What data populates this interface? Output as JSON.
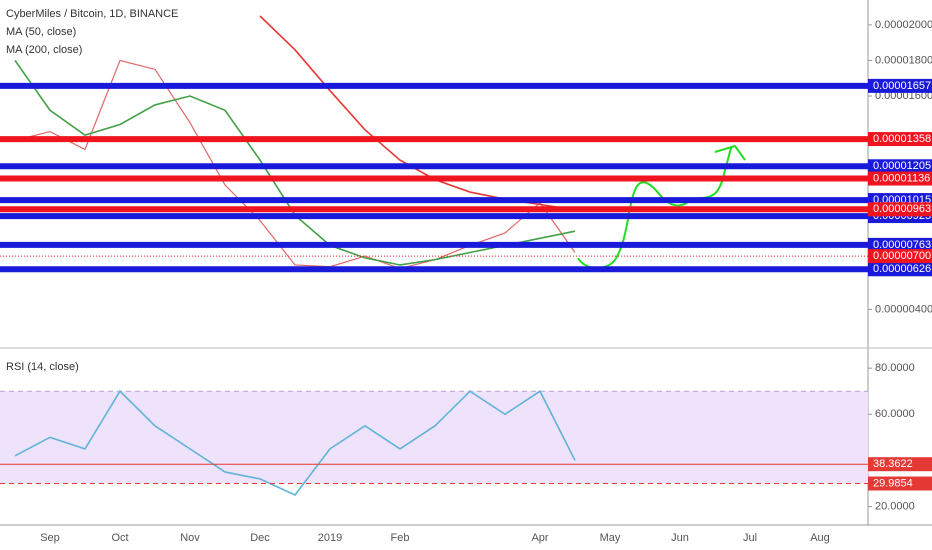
{
  "chart_data": [
    {
      "type": "line",
      "title": "CyberMiles / Bitcoin, 1D, BINANCE",
      "categories": [
        null,
        "Sep",
        null,
        "Oct",
        null,
        "Nov",
        null,
        "Dec",
        null,
        "2019",
        null,
        "Feb",
        null,
        null,
        null,
        "Apr",
        null,
        "May",
        null,
        "Jun",
        null,
        "Jul",
        null,
        "Aug",
        null
      ],
      "series": [
        {
          "color": "#e06666",
          "values": [
            1.35e-05,
            1.4e-05,
            1.3e-05,
            1.8e-05,
            1.75e-05,
            1.45e-05,
            1.1e-05,
            9e-06,
            6.5e-06,
            6.4e-06,
            7e-06,
            6.3e-06,
            6.8e-06,
            7.6e-06,
            8.3e-06,
            1e-05,
            7.2e-06,
            null,
            null,
            null,
            null,
            null,
            null,
            null,
            null
          ]
        },
        {
          "name": "MA (50, close)",
          "color": "#43a047",
          "values": [
            1.8e-05,
            1.52e-05,
            1.38e-05,
            1.44e-05,
            1.55e-05,
            1.6e-05,
            1.52e-05,
            1.24e-05,
            9.3e-06,
            7.6e-06,
            6.9e-06,
            6.5e-06,
            6.8e-06,
            7.2e-06,
            7.6e-06,
            8e-06,
            8.4e-06,
            null,
            null,
            null,
            null,
            null,
            null,
            null,
            null
          ]
        },
        {
          "name": "MA (200, close)",
          "color": "#e53935",
          "values": [
            null,
            null,
            null,
            null,
            null,
            null,
            null,
            2.05e-05,
            1.86e-05,
            1.63e-05,
            1.41e-05,
            1.24e-05,
            1.13e-05,
            1.06e-05,
            1.02e-05,
            9.9e-06,
            9.6e-06,
            null,
            null,
            null,
            null,
            null,
            null,
            null,
            null
          ]
        }
      ],
      "ylim": [
        2e-06,
        2.14e-05
      ],
      "yticks": [
        {
          "value": 4e-06,
          "label": "0.00000400"
        },
        {
          "value": 1.6e-05,
          "label": "0.00001600"
        },
        {
          "value": 1.8e-05,
          "label": "0.00001800"
        },
        {
          "value": 2e-05,
          "label": "0.00002000"
        }
      ],
      "levels": [
        {
          "value": 1.657e-05,
          "label": "0.00001657",
          "color": "#1a1adb",
          "style": "thick"
        },
        {
          "value": 1.358e-05,
          "label": "0.00001358",
          "color": "#f0141e",
          "style": "thick"
        },
        {
          "value": 1.205e-05,
          "label": "0.00001205",
          "color": "#1a1adb",
          "style": "thick"
        },
        {
          "value": 1.136e-05,
          "label": "0.00001136",
          "color": "#f0141e",
          "style": "thick"
        },
        {
          "value": 1.015e-05,
          "label": "0.00001015",
          "color": "#1a1adb",
          "style": "thick"
        },
        {
          "value": 9.25e-06,
          "label": "0.00000925",
          "color": "#1a1adb",
          "style": "thick"
        },
        {
          "value": 9.63e-06,
          "label": "0.00000963",
          "color": "#f0141e",
          "style": "thick"
        },
        {
          "value": 7.63e-06,
          "label": "0.00000763",
          "color": "#1a1adb",
          "style": "thick"
        },
        {
          "value": 6.26e-06,
          "label": "0.00000626",
          "color": "#1a1adb",
          "style": "thick"
        },
        {
          "value": 7e-06,
          "label": "0.00000700",
          "color": "#f0141e",
          "style": "dotted"
        }
      ]
    },
    {
      "type": "line",
      "title": "RSI (14, close)",
      "series": [
        {
          "color": "#5fb4d8",
          "values": [
            42,
            50,
            45,
            70,
            55,
            45,
            35,
            32,
            25,
            45,
            55,
            45,
            55,
            70,
            60,
            70,
            40,
            null,
            null,
            null,
            null,
            null,
            null,
            null,
            null
          ]
        }
      ],
      "ylim": [
        12,
        87
      ],
      "yticks": [
        {
          "value": 20,
          "label": "20.0000"
        },
        {
          "value": 60,
          "label": "60.0000"
        },
        {
          "value": 80,
          "label": "80.0000"
        }
      ],
      "band": [
        30,
        70
      ],
      "band_color": "#efe3fb",
      "levels": [
        {
          "value": 38.3622,
          "label": "38.3622",
          "color": "#e53935",
          "style": "thin"
        },
        {
          "value": 29.9854,
          "label": "29.9854",
          "color": "#e53935",
          "style": "dashed"
        }
      ]
    }
  ]
}
